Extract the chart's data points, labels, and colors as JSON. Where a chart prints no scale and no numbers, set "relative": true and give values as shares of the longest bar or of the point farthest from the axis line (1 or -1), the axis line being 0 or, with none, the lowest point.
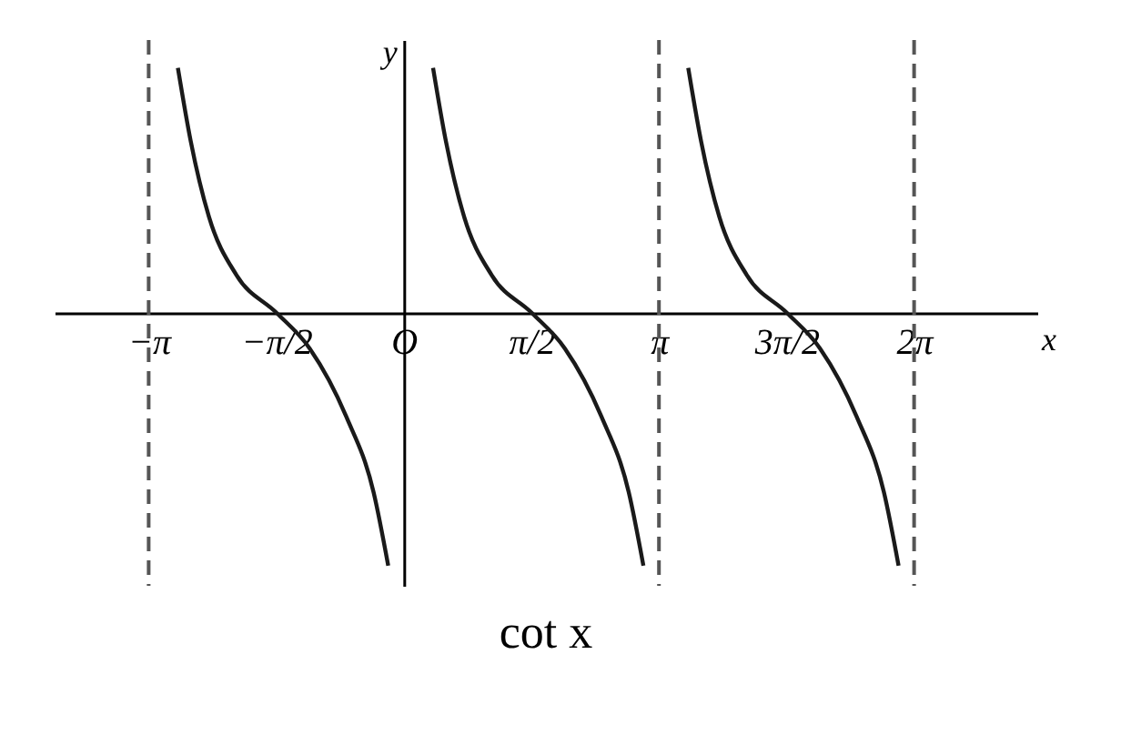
{
  "chart_data": {
    "type": "line",
    "title": "cot x",
    "xlabel": "x",
    "ylabel": "y",
    "relative": true,
    "xlim": [
      -4.3,
      7.8
    ],
    "xticks": [
      {
        "value": -3.1416,
        "label": "−π"
      },
      {
        "value": -1.5708,
        "label": "−π/2"
      },
      {
        "value": 0,
        "label": "O"
      },
      {
        "value": 1.5708,
        "label": "π/2"
      },
      {
        "value": 3.1416,
        "label": "π"
      },
      {
        "value": 4.7124,
        "label": "3π/2"
      },
      {
        "value": 6.2832,
        "label": "2π"
      }
    ],
    "marker": "none",
    "line_style": "solid",
    "series": [
      {
        "color": "#1a1a1a",
        "x": [
          -2.782,
          -2.624,
          -2.399,
          -2.061,
          -1.566,
          -1.16,
          -0.709,
          -0.372,
          -0.192
        ],
        "values": [
          0.97,
          0.68,
          0.38,
          0.15,
          0,
          -0.14,
          -0.41,
          -0.71,
          -1
        ]
      },
      {
        "color": "#1a1a1a",
        "x": [
          0.36,
          0.518,
          0.743,
          1.081,
          1.576,
          1.982,
          2.433,
          2.77,
          2.95
        ],
        "values": [
          0.97,
          0.68,
          0.38,
          0.15,
          0,
          -0.14,
          -0.41,
          -0.71,
          -1
        ]
      },
      {
        "color": "#1a1a1a",
        "x": [
          3.502,
          3.66,
          3.885,
          4.223,
          4.718,
          5.124,
          5.575,
          5.912,
          6.092
        ],
        "values": [
          0.97,
          0.68,
          0.38,
          0.15,
          0,
          -0.14,
          -0.41,
          -0.71,
          -1
        ]
      }
    ],
    "ref_lines": [
      {
        "axis": "x",
        "value": -3.1416,
        "color": "#555555",
        "line_style": "dashed"
      },
      {
        "axis": "x",
        "value": 3.1416,
        "color": "#555555",
        "line_style": "dashed"
      },
      {
        "axis": "x",
        "value": 6.2832,
        "color": "#555555",
        "line_style": "dashed"
      }
    ]
  }
}
